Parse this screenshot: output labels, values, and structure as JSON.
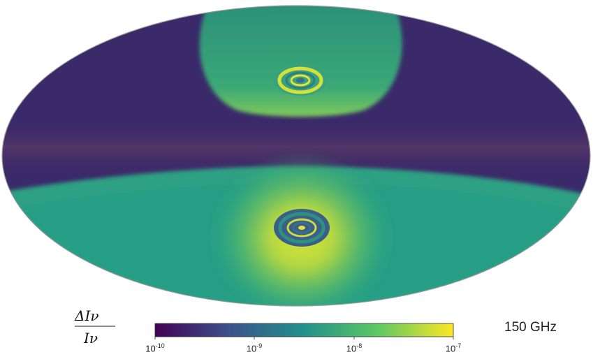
{
  "colorbar": {
    "label_numerator": "ΔIν",
    "label_denominator": "Iν",
    "ticks": [
      {
        "base": "10",
        "exp": "-10"
      },
      {
        "base": "10",
        "exp": "-9"
      },
      {
        "base": "10",
        "exp": "-8"
      },
      {
        "base": "10",
        "exp": "-7"
      }
    ],
    "colors": [
      "#440154",
      "#3b528b",
      "#21918c",
      "#5ec962",
      "#fde725"
    ]
  },
  "frequency_label": "150 GHz"
}
